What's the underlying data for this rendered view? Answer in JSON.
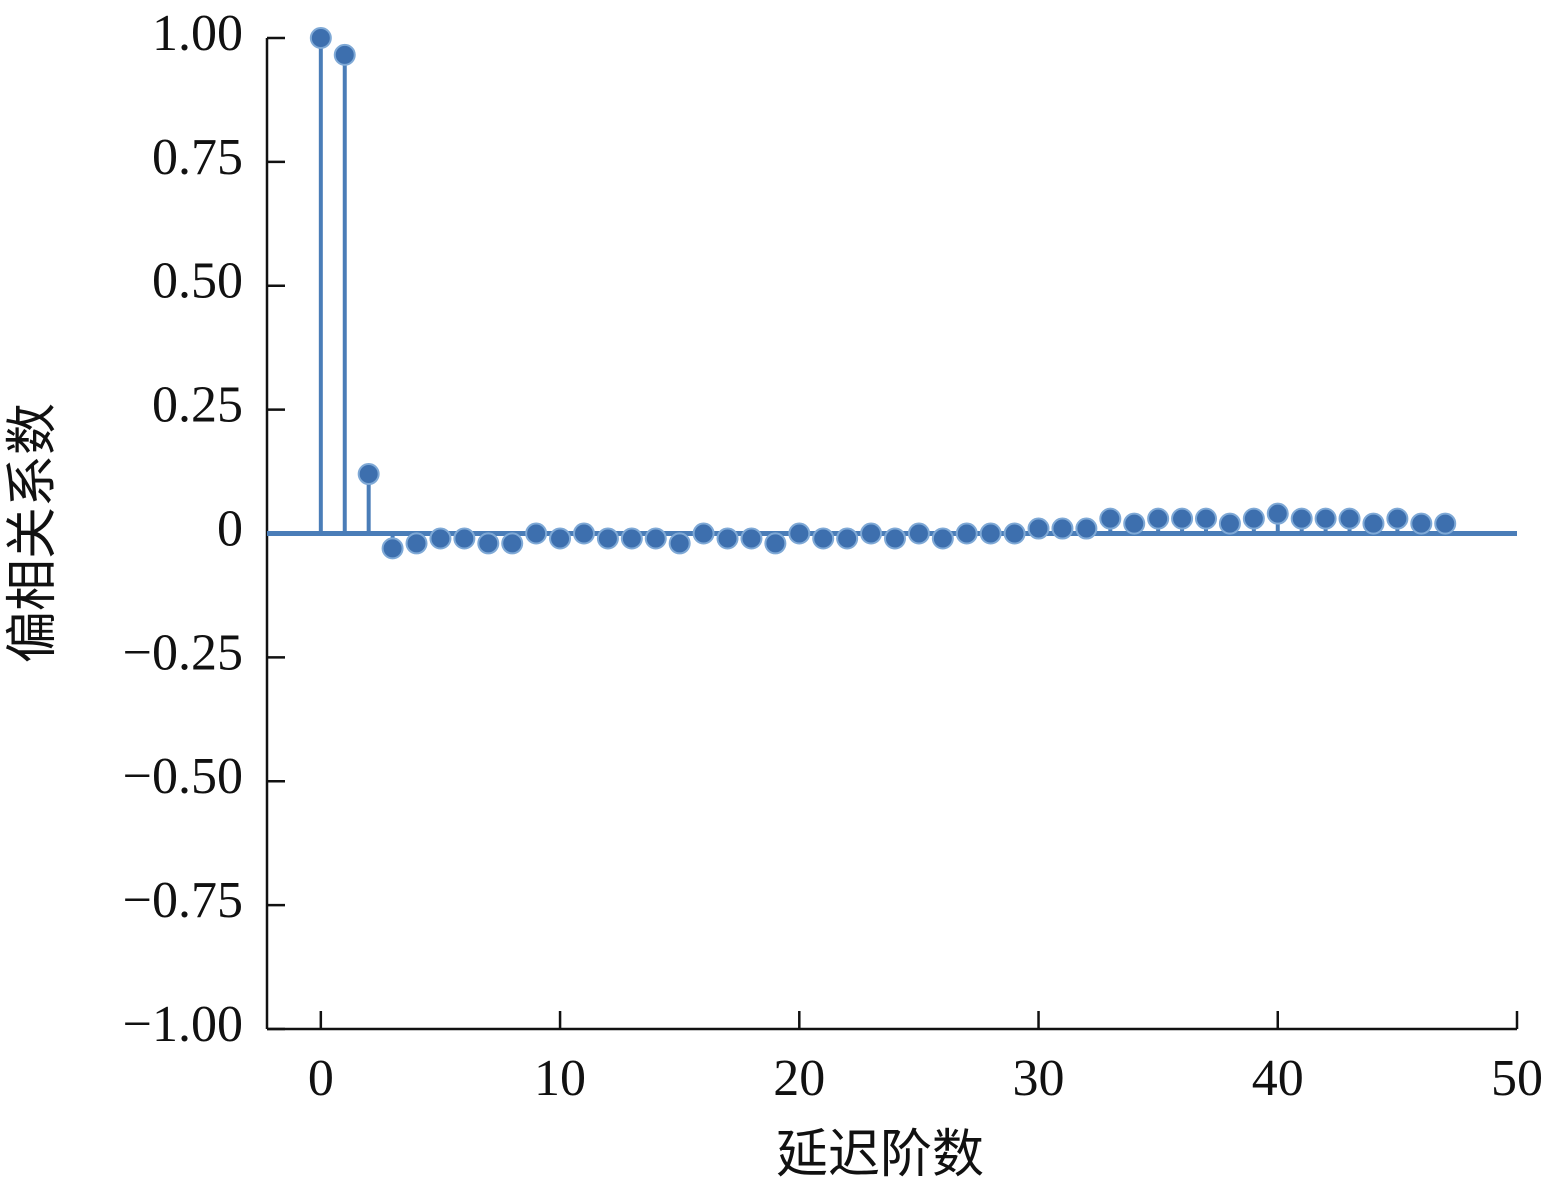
{
  "chart_data": {
    "type": "stem",
    "x_label": "延迟阶数",
    "y_label": "偏相关系数",
    "x": [
      0,
      1,
      2,
      3,
      4,
      5,
      6,
      7,
      8,
      9,
      10,
      11,
      12,
      13,
      14,
      15,
      16,
      17,
      18,
      19,
      20,
      21,
      22,
      23,
      24,
      25,
      26,
      27,
      28,
      29,
      30,
      31,
      32,
      33,
      34,
      35,
      36,
      37,
      38,
      39,
      40,
      41,
      42,
      43,
      44,
      45,
      46,
      47
    ],
    "values": [
      1.0,
      0.966,
      0.12,
      -0.03,
      -0.02,
      -0.01,
      -0.01,
      -0.02,
      -0.02,
      0.0,
      -0.01,
      0.0,
      -0.01,
      -0.01,
      -0.01,
      -0.02,
      0.0,
      -0.01,
      -0.01,
      -0.02,
      0.0,
      -0.01,
      -0.01,
      0.0,
      -0.01,
      0.0,
      -0.01,
      0.0,
      0.0,
      0.0,
      0.01,
      0.01,
      0.01,
      0.03,
      0.02,
      0.03,
      0.03,
      0.03,
      0.02,
      0.03,
      0.04,
      0.03,
      0.03,
      0.03,
      0.02,
      0.03,
      0.02,
      0.02
    ],
    "color": "#3d6fae",
    "xlim": [
      -2.25,
      50
    ],
    "xticks": [
      0,
      10,
      20,
      30,
      40,
      50
    ],
    "ylim": [
      -1,
      1
    ],
    "yticks": [
      {
        "value": 1,
        "label": "1.00"
      },
      0.75,
      {
        "value": 0.5,
        "label": "0.50"
      },
      0.25,
      0,
      {
        "value": -0.25,
        "label": "−0.25"
      },
      {
        "value": -0.5,
        "label": "−0.50"
      },
      {
        "value": -0.75,
        "label": "−0.75"
      },
      {
        "value": -1,
        "label": "−1.00"
      }
    ]
  }
}
